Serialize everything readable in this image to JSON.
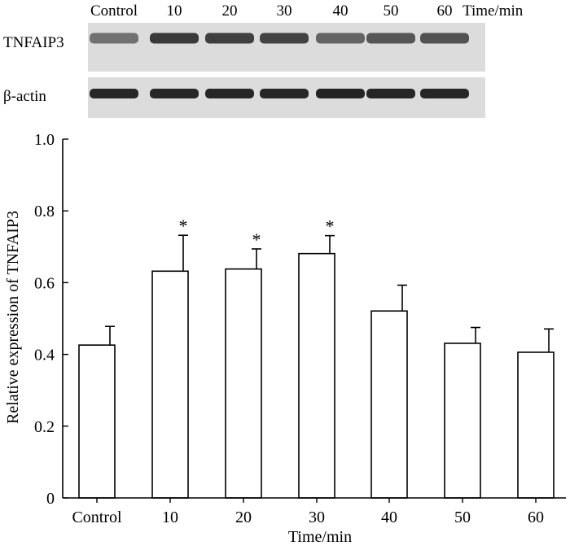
{
  "blot": {
    "lane_labels": [
      "Control",
      "10",
      "20",
      "30",
      "40",
      "50",
      "60"
    ],
    "time_label": "Time/min",
    "rows": [
      {
        "label": "TNFAIP3",
        "band_intensity": [
          0.55,
          0.85,
          0.82,
          0.8,
          0.62,
          0.7,
          0.72
        ]
      },
      {
        "label": "β-actin",
        "band_intensity": [
          0.95,
          0.95,
          0.95,
          0.95,
          0.97,
          0.96,
          0.95
        ]
      }
    ]
  },
  "chart_data": {
    "type": "bar",
    "categories": [
      "Control",
      "10",
      "20",
      "30",
      "40",
      "50",
      "60"
    ],
    "values": [
      0.426,
      0.632,
      0.638,
      0.681,
      0.521,
      0.431,
      0.406
    ],
    "error": [
      0.052,
      0.1,
      0.056,
      0.05,
      0.072,
      0.044,
      0.065
    ],
    "significant": [
      false,
      true,
      true,
      true,
      false,
      false,
      false
    ],
    "significance_marker": "*",
    "xlabel": "Time/min",
    "ylabel": "Relative expression of TNFAIP3",
    "ylim": [
      0,
      1.0
    ],
    "yticks": [
      "0",
      "0.2",
      "0.4",
      "0.6",
      "0.8",
      "1.0"
    ],
    "ytick_values": [
      0,
      0.2,
      0.4,
      0.6,
      0.8,
      1.0
    ],
    "bar_fill": "#ffffff",
    "bar_stroke": "#000000"
  }
}
